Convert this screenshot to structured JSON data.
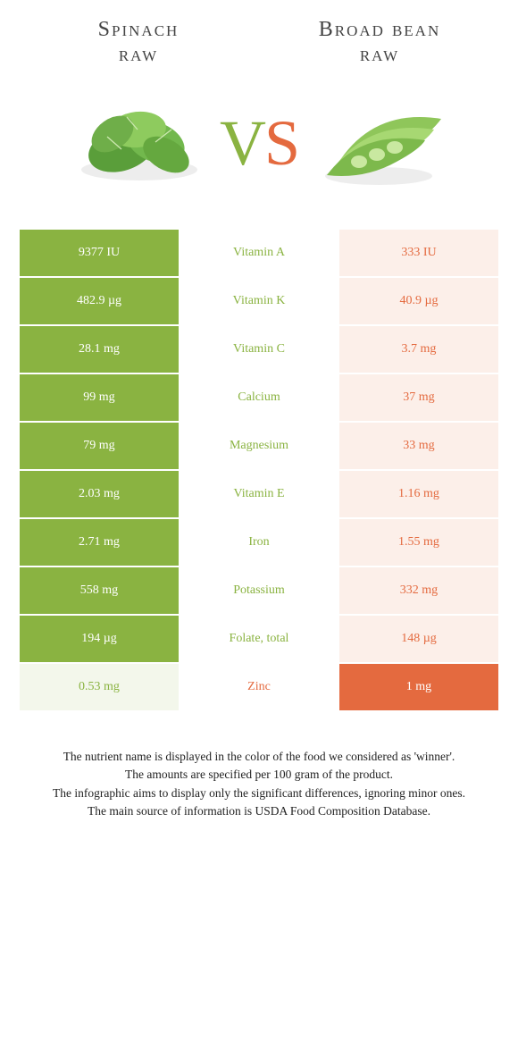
{
  "colors": {
    "left": "#8ab341",
    "right": "#e46a3f",
    "left_faded": "#f3f7eb",
    "right_faded": "#fcefe9",
    "white": "#ffffff"
  },
  "header": {
    "left_line1": "Spinach",
    "left_line2": "raw",
    "right_line1": "Broad bean",
    "right_line2": "raw"
  },
  "vs": {
    "v": "V",
    "s": "S"
  },
  "rows": [
    {
      "left": "9377 IU",
      "label": "Vitamin A",
      "right": "333 IU",
      "winner": "left"
    },
    {
      "left": "482.9 µg",
      "label": "Vitamin K",
      "right": "40.9 µg",
      "winner": "left"
    },
    {
      "left": "28.1 mg",
      "label": "Vitamin C",
      "right": "3.7 mg",
      "winner": "left"
    },
    {
      "left": "99 mg",
      "label": "Calcium",
      "right": "37 mg",
      "winner": "left"
    },
    {
      "left": "79 mg",
      "label": "Magnesium",
      "right": "33 mg",
      "winner": "left"
    },
    {
      "left": "2.03 mg",
      "label": "Vitamin E",
      "right": "1.16 mg",
      "winner": "left"
    },
    {
      "left": "2.71 mg",
      "label": "Iron",
      "right": "1.55 mg",
      "winner": "left"
    },
    {
      "left": "558 mg",
      "label": "Potassium",
      "right": "332 mg",
      "winner": "left"
    },
    {
      "left": "194 µg",
      "label": "Folate, total",
      "right": "148 µg",
      "winner": "left"
    },
    {
      "left": "0.53 mg",
      "label": "Zinc",
      "right": "1 mg",
      "winner": "right"
    }
  ],
  "footer": {
    "line1": "The nutrient name is displayed in the color of the food we considered as 'winner'.",
    "line2": "The amounts are specified per 100 gram of the product.",
    "line3": "The infographic aims to display only the significant differences, ignoring minor ones.",
    "line4": "The main source of information is USDA Food Composition Database."
  }
}
